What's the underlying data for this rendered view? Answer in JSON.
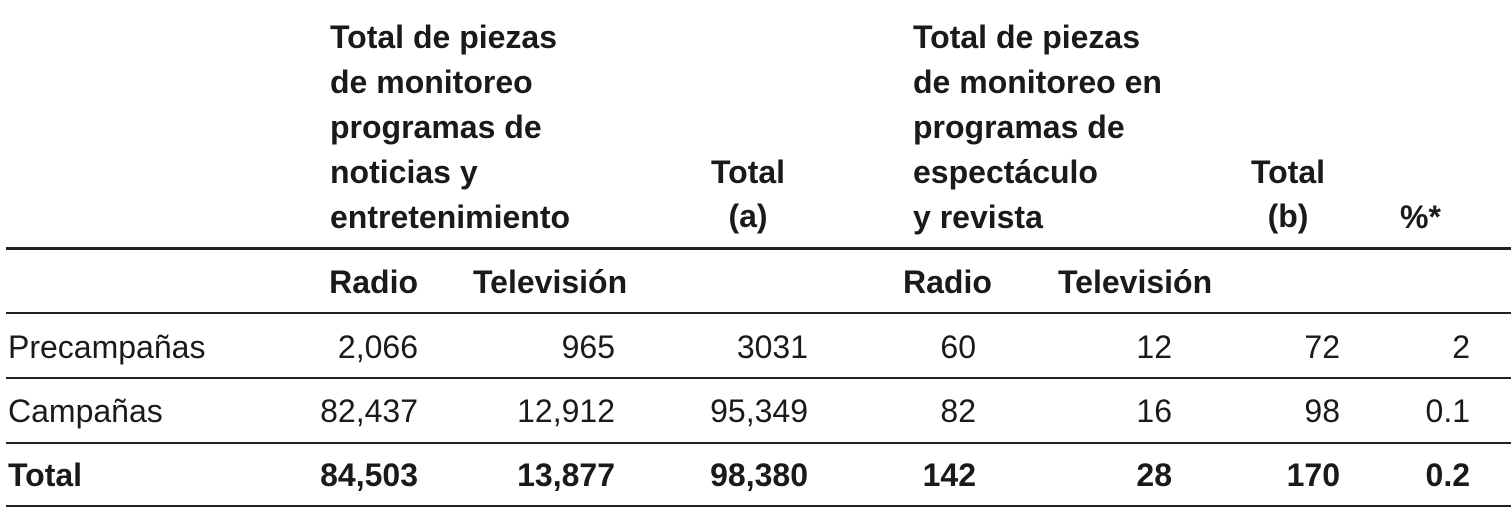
{
  "header": {
    "group_a": [
      "Total de piezas",
      "de monitoreo",
      "programas de",
      "noticias y",
      "entretenimiento"
    ],
    "total_a": [
      "Total",
      "(a)"
    ],
    "group_b": [
      "Total de piezas",
      "de monitoreo en",
      "programas de",
      "espectáculo",
      "y revista"
    ],
    "total_b": [
      "Total",
      "(b)"
    ],
    "percent": "%*"
  },
  "subheader": [
    "Radio",
    "Televisión",
    "Radio",
    "Televisión"
  ],
  "rows": [
    [
      "Precampañas",
      "2,066",
      "965",
      "3031",
      "60",
      "12",
      "72",
      "2"
    ],
    [
      "Campañas",
      "82,437",
      "12,912",
      "95,349",
      "82",
      "16",
      "98",
      "0.1"
    ],
    [
      "Total",
      "84,503",
      "13,877",
      "98,380",
      "142",
      "28",
      "170",
      "0.2"
    ]
  ]
}
